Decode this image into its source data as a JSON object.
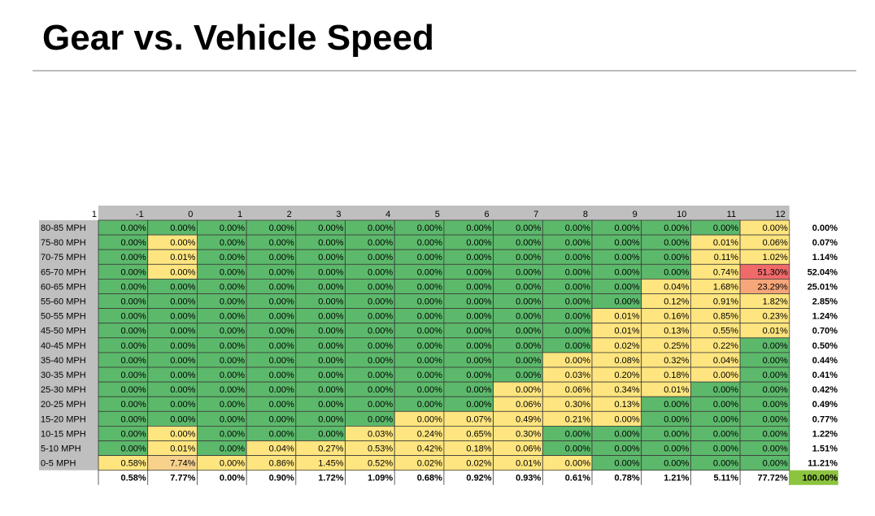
{
  "page": {
    "title": "Gear vs. Vehicle Speed"
  },
  "colors": {
    "green": "#5cb96b",
    "yellow": "#ffe57f",
    "orange": "#f7a67a",
    "red": "#f06a6a",
    "peach": "#f8d28c",
    "header_gray": "#bfbfbf",
    "total_green": "#8cc43f"
  },
  "chart_data": {
    "type": "heatmap",
    "corner_label": "1",
    "columns": [
      "-1",
      "0",
      "1",
      "2",
      "3",
      "4",
      "5",
      "6",
      "7",
      "8",
      "9",
      "10",
      "11",
      "12"
    ],
    "rows": [
      "80-85 MPH",
      "75-80 MPH",
      "70-75 MPH",
      "65-70 MPH",
      "60-65 MPH",
      "55-60 MPH",
      "50-55 MPH",
      "45-50 MPH",
      "40-45 MPH",
      "35-40 MPH",
      "30-35 MPH",
      "25-30 MPH",
      "20-25 MPH",
      "15-20 MPH",
      "10-15 MPH",
      "5-10 MPH",
      "0-5 MPH"
    ],
    "values": [
      [
        "0.00%",
        "0.00%",
        "0.00%",
        "0.00%",
        "0.00%",
        "0.00%",
        "0.00%",
        "0.00%",
        "0.00%",
        "0.00%",
        "0.00%",
        "0.00%",
        "0.00%",
        "0.00%"
      ],
      [
        "0.00%",
        "0.00%",
        "0.00%",
        "0.00%",
        "0.00%",
        "0.00%",
        "0.00%",
        "0.00%",
        "0.00%",
        "0.00%",
        "0.00%",
        "0.00%",
        "0.01%",
        "0.06%"
      ],
      [
        "0.00%",
        "0.01%",
        "0.00%",
        "0.00%",
        "0.00%",
        "0.00%",
        "0.00%",
        "0.00%",
        "0.00%",
        "0.00%",
        "0.00%",
        "0.00%",
        "0.11%",
        "1.02%"
      ],
      [
        "0.00%",
        "0.00%",
        "0.00%",
        "0.00%",
        "0.00%",
        "0.00%",
        "0.00%",
        "0.00%",
        "0.00%",
        "0.00%",
        "0.00%",
        "0.00%",
        "0.74%",
        "51.30%"
      ],
      [
        "0.00%",
        "0.00%",
        "0.00%",
        "0.00%",
        "0.00%",
        "0.00%",
        "0.00%",
        "0.00%",
        "0.00%",
        "0.00%",
        "0.00%",
        "0.04%",
        "1.68%",
        "23.29%"
      ],
      [
        "0.00%",
        "0.00%",
        "0.00%",
        "0.00%",
        "0.00%",
        "0.00%",
        "0.00%",
        "0.00%",
        "0.00%",
        "0.00%",
        "0.00%",
        "0.12%",
        "0.91%",
        "1.82%"
      ],
      [
        "0.00%",
        "0.00%",
        "0.00%",
        "0.00%",
        "0.00%",
        "0.00%",
        "0.00%",
        "0.00%",
        "0.00%",
        "0.00%",
        "0.01%",
        "0.16%",
        "0.85%",
        "0.23%"
      ],
      [
        "0.00%",
        "0.00%",
        "0.00%",
        "0.00%",
        "0.00%",
        "0.00%",
        "0.00%",
        "0.00%",
        "0.00%",
        "0.00%",
        "0.01%",
        "0.13%",
        "0.55%",
        "0.01%"
      ],
      [
        "0.00%",
        "0.00%",
        "0.00%",
        "0.00%",
        "0.00%",
        "0.00%",
        "0.00%",
        "0.00%",
        "0.00%",
        "0.00%",
        "0.02%",
        "0.25%",
        "0.22%",
        "0.00%"
      ],
      [
        "0.00%",
        "0.00%",
        "0.00%",
        "0.00%",
        "0.00%",
        "0.00%",
        "0.00%",
        "0.00%",
        "0.00%",
        "0.00%",
        "0.08%",
        "0.32%",
        "0.04%",
        "0.00%"
      ],
      [
        "0.00%",
        "0.00%",
        "0.00%",
        "0.00%",
        "0.00%",
        "0.00%",
        "0.00%",
        "0.00%",
        "0.00%",
        "0.03%",
        "0.20%",
        "0.18%",
        "0.00%",
        "0.00%"
      ],
      [
        "0.00%",
        "0.00%",
        "0.00%",
        "0.00%",
        "0.00%",
        "0.00%",
        "0.00%",
        "0.00%",
        "0.00%",
        "0.06%",
        "0.34%",
        "0.01%",
        "0.00%",
        "0.00%"
      ],
      [
        "0.00%",
        "0.00%",
        "0.00%",
        "0.00%",
        "0.00%",
        "0.00%",
        "0.00%",
        "0.00%",
        "0.06%",
        "0.30%",
        "0.13%",
        "0.00%",
        "0.00%",
        "0.00%"
      ],
      [
        "0.00%",
        "0.00%",
        "0.00%",
        "0.00%",
        "0.00%",
        "0.00%",
        "0.00%",
        "0.07%",
        "0.49%",
        "0.21%",
        "0.00%",
        "0.00%",
        "0.00%",
        "0.00%"
      ],
      [
        "0.00%",
        "0.00%",
        "0.00%",
        "0.00%",
        "0.00%",
        "0.03%",
        "0.24%",
        "0.65%",
        "0.30%",
        "0.00%",
        "0.00%",
        "0.00%",
        "0.00%",
        "0.00%"
      ],
      [
        "0.00%",
        "0.01%",
        "0.00%",
        "0.04%",
        "0.27%",
        "0.53%",
        "0.42%",
        "0.18%",
        "0.06%",
        "0.00%",
        "0.00%",
        "0.00%",
        "0.00%",
        "0.00%"
      ],
      [
        "0.58%",
        "7.74%",
        "0.00%",
        "0.86%",
        "1.45%",
        "0.52%",
        "0.02%",
        "0.02%",
        "0.01%",
        "0.00%",
        "0.00%",
        "0.00%",
        "0.00%",
        "0.00%"
      ]
    ],
    "cell_colors": [
      [
        "g",
        "g",
        "g",
        "g",
        "g",
        "g",
        "g",
        "g",
        "g",
        "g",
        "g",
        "g",
        "g",
        "y"
      ],
      [
        "g",
        "y",
        "g",
        "g",
        "g",
        "g",
        "g",
        "g",
        "g",
        "g",
        "g",
        "g",
        "y",
        "y"
      ],
      [
        "g",
        "y",
        "g",
        "g",
        "g",
        "g",
        "g",
        "g",
        "g",
        "g",
        "g",
        "g",
        "y",
        "y"
      ],
      [
        "g",
        "y",
        "g",
        "g",
        "g",
        "g",
        "g",
        "g",
        "g",
        "g",
        "g",
        "g",
        "y",
        "r"
      ],
      [
        "g",
        "g",
        "g",
        "g",
        "g",
        "g",
        "g",
        "g",
        "g",
        "g",
        "g",
        "y",
        "y",
        "o"
      ],
      [
        "g",
        "g",
        "g",
        "g",
        "g",
        "g",
        "g",
        "g",
        "g",
        "g",
        "g",
        "y",
        "y",
        "y"
      ],
      [
        "g",
        "g",
        "g",
        "g",
        "g",
        "g",
        "g",
        "g",
        "g",
        "g",
        "y",
        "y",
        "y",
        "y"
      ],
      [
        "g",
        "g",
        "g",
        "g",
        "g",
        "g",
        "g",
        "g",
        "g",
        "g",
        "y",
        "y",
        "y",
        "y"
      ],
      [
        "g",
        "g",
        "g",
        "g",
        "g",
        "g",
        "g",
        "g",
        "g",
        "g",
        "y",
        "y",
        "y",
        "g"
      ],
      [
        "g",
        "g",
        "g",
        "g",
        "g",
        "g",
        "g",
        "g",
        "g",
        "y",
        "y",
        "y",
        "y",
        "g"
      ],
      [
        "g",
        "g",
        "g",
        "g",
        "g",
        "g",
        "g",
        "g",
        "g",
        "y",
        "y",
        "y",
        "y",
        "g"
      ],
      [
        "g",
        "g",
        "g",
        "g",
        "g",
        "g",
        "g",
        "g",
        "y",
        "y",
        "y",
        "y",
        "g",
        "g"
      ],
      [
        "g",
        "g",
        "g",
        "g",
        "g",
        "g",
        "g",
        "g",
        "y",
        "y",
        "y",
        "g",
        "g",
        "g"
      ],
      [
        "g",
        "g",
        "g",
        "g",
        "g",
        "g",
        "y",
        "y",
        "y",
        "y",
        "y",
        "g",
        "g",
        "g"
      ],
      [
        "g",
        "y",
        "g",
        "g",
        "g",
        "y",
        "y",
        "y",
        "y",
        "g",
        "g",
        "g",
        "g",
        "g"
      ],
      [
        "g",
        "y",
        "g",
        "y",
        "y",
        "y",
        "y",
        "y",
        "y",
        "g",
        "g",
        "g",
        "g",
        "g"
      ],
      [
        "y",
        "p",
        "y",
        "y",
        "y",
        "y",
        "y",
        "y",
        "y",
        "y",
        "g",
        "g",
        "g",
        "g"
      ]
    ],
    "row_totals": [
      "0.00%",
      "0.07%",
      "1.14%",
      "52.04%",
      "25.01%",
      "2.85%",
      "1.24%",
      "0.70%",
      "0.50%",
      "0.44%",
      "0.41%",
      "0.42%",
      "0.49%",
      "0.77%",
      "1.22%",
      "1.51%",
      "11.21%"
    ],
    "column_totals": [
      "0.58%",
      "7.77%",
      "0.00%",
      "0.90%",
      "1.72%",
      "1.09%",
      "0.68%",
      "0.92%",
      "0.93%",
      "0.61%",
      "0.78%",
      "1.21%",
      "5.11%",
      "77.72%"
    ],
    "grand_total": "100.00%"
  }
}
